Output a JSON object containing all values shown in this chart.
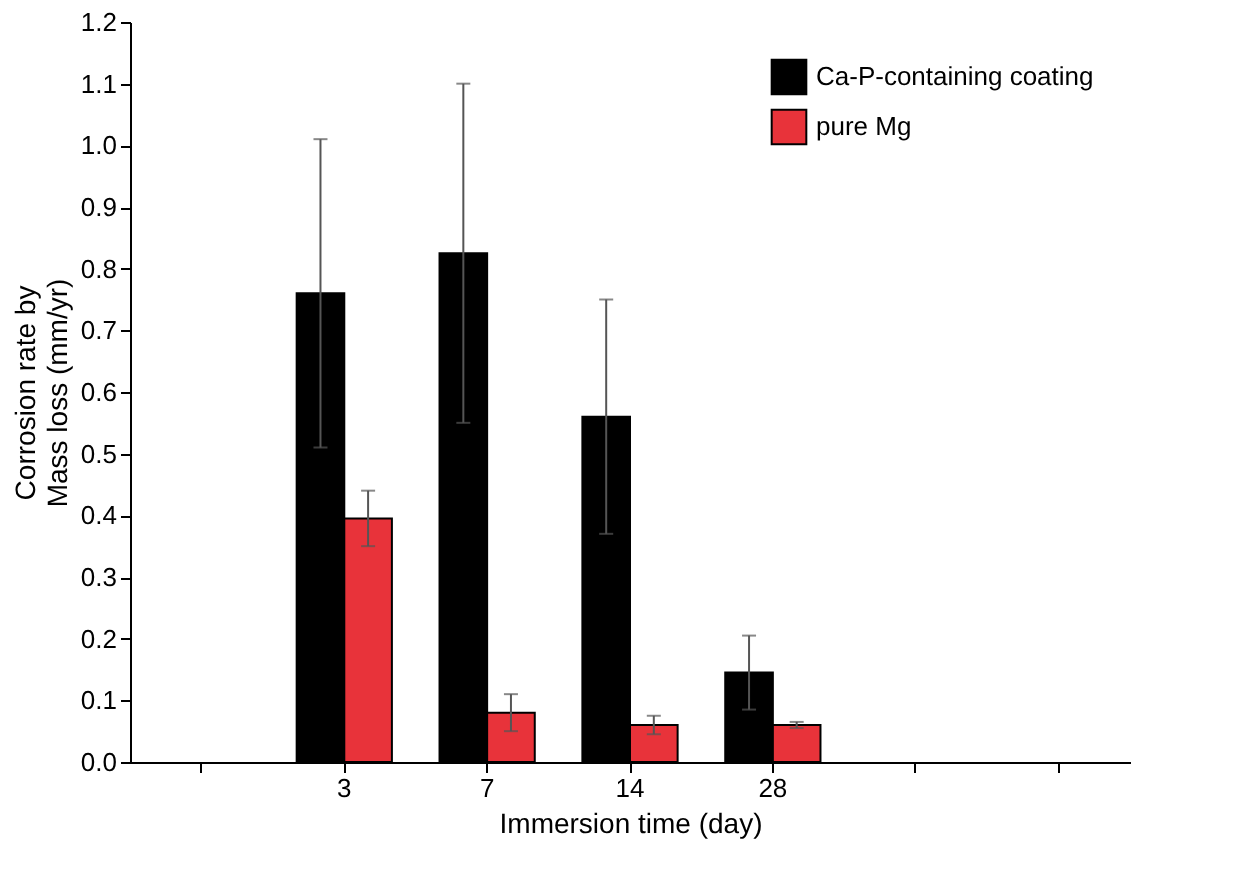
{
  "chart_data": {
    "type": "bar",
    "xlabel": "Immersion time (day)",
    "ylabel": "Corrosion rate by\nMass loss (mm/yr)",
    "categories": [
      null,
      "3",
      "7",
      "14",
      "28",
      null,
      null
    ],
    "series": [
      {
        "name": "Ca-P-containing coating",
        "color": "#000000",
        "values": [
          null,
          0.76,
          0.825,
          0.56,
          0.145,
          null,
          null
        ],
        "errors": [
          null,
          0.25,
          0.275,
          0.19,
          0.06,
          null,
          null
        ]
      },
      {
        "name": "pure Mg",
        "color": "#e8333a",
        "values": [
          null,
          0.395,
          0.08,
          0.06,
          0.06,
          null,
          null
        ],
        "errors": [
          null,
          0.045,
          0.03,
          0.015,
          0.005,
          null,
          null
        ]
      }
    ],
    "ylim": [
      0,
      1.2
    ],
    "yticks": [
      {
        "value": 0,
        "label": "0.0"
      },
      0.1,
      0.2,
      0.3,
      0.4,
      0.5,
      0.6,
      0.7,
      0.8,
      0.9,
      {
        "value": 1,
        "label": "1.0"
      },
      1.1,
      1.2
    ],
    "grid": false,
    "legend": "top right"
  }
}
